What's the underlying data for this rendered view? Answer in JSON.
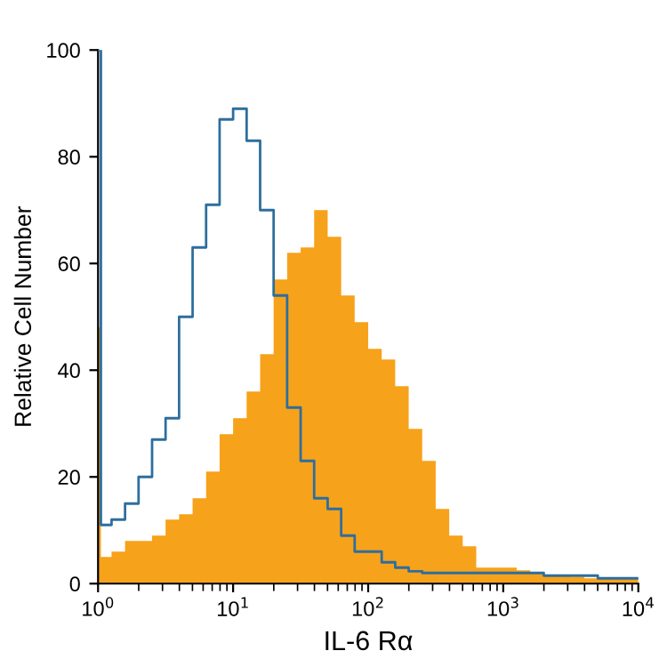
{
  "chart_data": {
    "type": "histogram",
    "xlabel": "IL-6 Rα",
    "ylabel": "Relative Cell Number",
    "log": "x",
    "bins": [
      1,
      1.05,
      1.259,
      1.585,
      1.995,
      2.512,
      3.162,
      3.981,
      5.012,
      6.31,
      7.943,
      10,
      12.59,
      15.85,
      19.95,
      25.12,
      31.62,
      39.81,
      50.12,
      63.1,
      79.43,
      100,
      125.9,
      158.5,
      199.5,
      251.2,
      316.2,
      398.1,
      501.2,
      631,
      794.3,
      1000,
      1259,
      1585,
      1995,
      2512,
      3162,
      3981,
      5012,
      6310,
      7943,
      10000
    ],
    "series": [
      {
        "color": "#f7a21b",
        "values": [
          48,
          5,
          6,
          8,
          8,
          9,
          12,
          13,
          16,
          21,
          28,
          31,
          36,
          43,
          57,
          62,
          63,
          70,
          65,
          54,
          49,
          44,
          42,
          37,
          29,
          23,
          14,
          9,
          7,
          3,
          3,
          3,
          2.5,
          2,
          1.5,
          1.5,
          1.3,
          1,
          1,
          1,
          1
        ]
      },
      {
        "type": "step",
        "color": "#2e6e9e",
        "x": [
          1,
          1.05,
          1.259,
          1.585,
          1.995,
          2.512,
          3.162,
          3.981,
          5.012,
          6.31,
          7.943,
          10,
          12.59,
          15.85,
          19.95,
          25.12,
          31.62,
          39.81,
          50.12,
          63.1,
          79.43,
          100,
          125.9,
          158.5,
          199.5,
          251.2,
          316.2,
          398.1,
          501.2,
          631,
          794.3,
          1000,
          1259,
          1585,
          1995,
          2512,
          3162,
          3981,
          5012,
          6310,
          7943,
          10000
        ],
        "values": [
          100,
          11,
          12,
          15,
          20,
          27,
          31,
          50,
          63,
          71,
          87,
          89,
          83,
          70,
          54,
          33,
          23,
          16,
          14,
          9,
          6,
          6,
          4,
          3,
          2.3,
          2,
          2,
          2,
          2,
          2,
          2,
          2,
          2,
          2,
          1.5,
          1.5,
          1.5,
          1.5,
          1,
          1,
          1,
          1
        ]
      }
    ],
    "xlim": [
      1,
      10000
    ],
    "xticks": [
      {
        "value": 1,
        "label": "10$^{0}$"
      },
      {
        "value": 10,
        "label": "10$^{1}$"
      },
      {
        "value": 100,
        "label": "10$^{2}$"
      },
      {
        "value": 1000,
        "label": "10$^{3}$"
      },
      {
        "value": 10000,
        "label": "10$^{4}$"
      }
    ],
    "ylim": [
      0,
      100
    ],
    "yticks": [
      0,
      20,
      40,
      60,
      80,
      100
    ],
    "grid": false
  }
}
